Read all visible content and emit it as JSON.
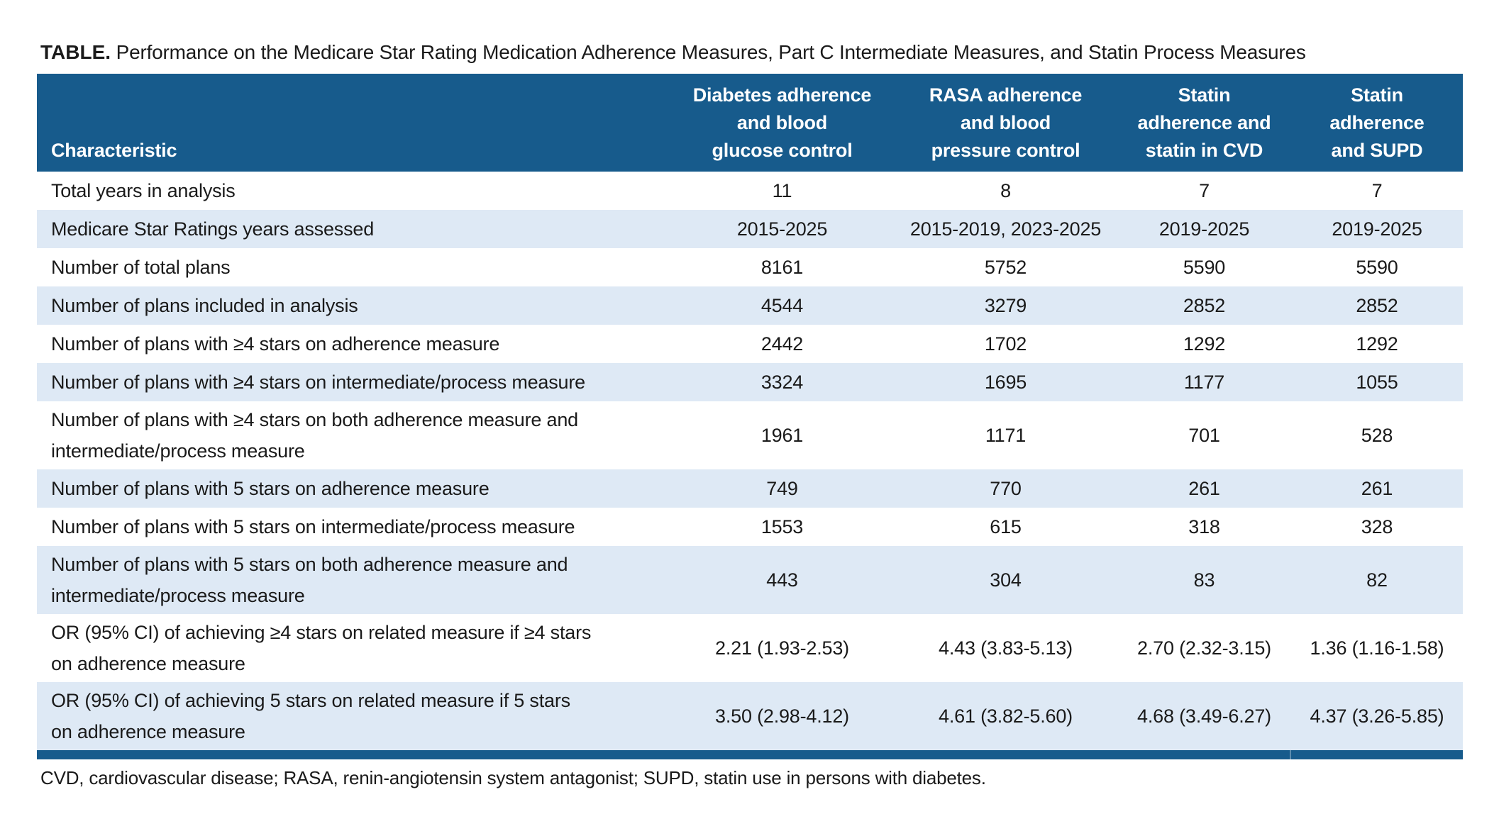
{
  "title": {
    "label": "TABLE.",
    "text": " Performance on the Medicare Star Rating Medication Adherence Measures, Part C Intermediate Measures, and Statin Process Measures"
  },
  "colors": {
    "header_bg": "#175b8c",
    "shaded_row_bg": "#dee9f5",
    "bottom_bar": "#175b8c",
    "header_text": "#ffffff",
    "body_text": "#1a1a1a"
  },
  "table": {
    "header": {
      "characteristic": "Characteristic",
      "columns": [
        {
          "lines": [
            "Diabetes adherence",
            "and blood",
            "glucose control"
          ]
        },
        {
          "lines": [
            "RASA adherence",
            "and blood",
            "pressure control"
          ]
        },
        {
          "lines": [
            "Statin",
            "adherence and",
            "statin in CVD"
          ]
        },
        {
          "lines": [
            "Statin",
            "adherence",
            "and SUPD"
          ]
        }
      ]
    },
    "rows": [
      {
        "label": "Total years in analysis",
        "values": [
          "11",
          "8",
          "7",
          "7"
        ],
        "shaded": false
      },
      {
        "label": "Medicare Star Ratings years assessed",
        "values": [
          "2015-2025",
          "2015-2019, 2023-2025",
          "2019-2025",
          "2019-2025"
        ],
        "shaded": true
      },
      {
        "label": "Number of total plans",
        "values": [
          "8161",
          "5752",
          "5590",
          "5590"
        ],
        "shaded": false
      },
      {
        "label": "Number of plans included in analysis",
        "values": [
          "4544",
          "3279",
          "2852",
          "2852"
        ],
        "shaded": true
      },
      {
        "label": "Number of plans with ≥4 stars on adherence measure",
        "values": [
          "2442",
          "1702",
          "1292",
          "1292"
        ],
        "shaded": false
      },
      {
        "label": "Number of plans with ≥4 stars on intermediate/process measure",
        "values": [
          "3324",
          "1695",
          "1177",
          "1055"
        ],
        "shaded": true
      },
      {
        "label": "Number of plans with ≥4 stars on both adherence measure and\nintermediate/process measure",
        "values": [
          "1961",
          "1171",
          "701",
          "528"
        ],
        "shaded": false
      },
      {
        "label": "Number of plans with 5 stars on adherence measure",
        "values": [
          "749",
          "770",
          "261",
          "261"
        ],
        "shaded": true
      },
      {
        "label": "Number of plans with 5 stars on intermediate/process measure",
        "values": [
          "1553",
          "615",
          "318",
          "328"
        ],
        "shaded": false
      },
      {
        "label": "Number of plans with 5 stars on both adherence measure and\nintermediate/process measure",
        "values": [
          "443",
          "304",
          "83",
          "82"
        ],
        "shaded": true
      },
      {
        "label": "OR (95% CI) of achieving ≥4 stars on related measure if ≥4 stars\non adherence measure",
        "values": [
          "2.21 (1.93-2.53)",
          "4.43 (3.83-5.13)",
          "2.70 (2.32-3.15)",
          "1.36 (1.16-1.58)"
        ],
        "shaded": false
      },
      {
        "label": "OR (95% CI) of achieving 5 stars on related measure if 5 stars\non adherence measure",
        "values": [
          "3.50 (2.98-4.12)",
          "4.61 (3.82-5.60)",
          "4.68 (3.49-6.27)",
          "4.37 (3.26-5.85)"
        ],
        "shaded": true
      }
    ]
  },
  "footnote": "CVD, cardiovascular disease; RASA, renin-angiotensin system antagonist; SUPD, statin use in persons with diabetes."
}
